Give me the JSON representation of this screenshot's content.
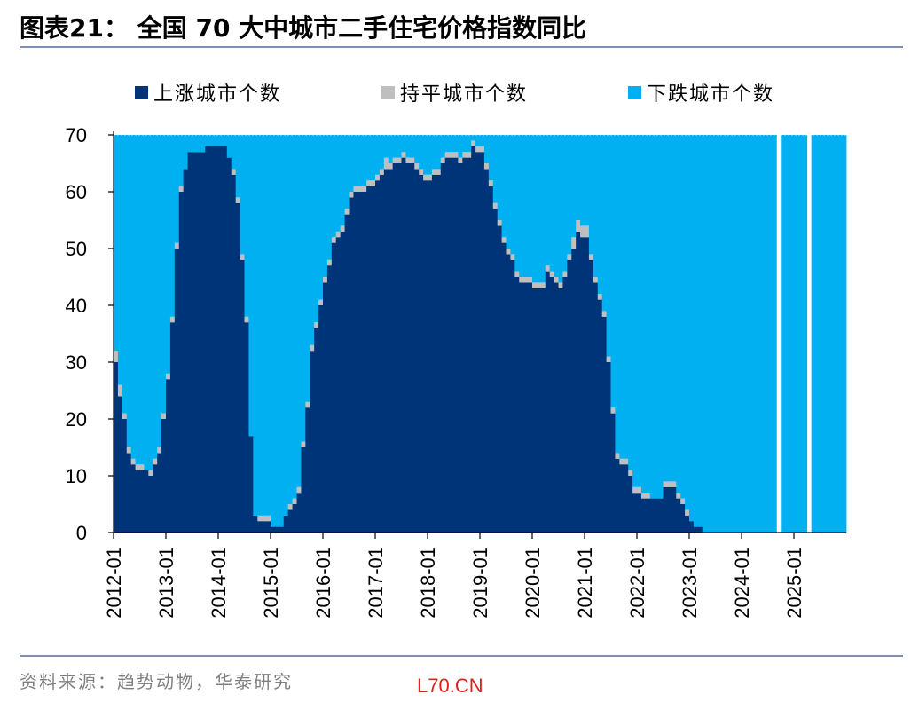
{
  "header": {
    "title": "图表21：  全国 70 大中城市二手住宅价格指数同比"
  },
  "footer": {
    "source": "资料来源：趋势动物，华泰研究",
    "watermark": "L70.CN"
  },
  "colors": {
    "up": "#003478",
    "flat": "#bfbfbf",
    "down": "#00b0f0"
  },
  "chart_data": {
    "type": "area",
    "stacked": true,
    "xlabel": "",
    "ylabel": "",
    "ylim": [
      0,
      70
    ],
    "yticks": [
      0,
      10,
      20,
      30,
      40,
      50,
      60,
      70
    ],
    "xticks": [
      "2012-01",
      "2013-01",
      "2014-01",
      "2015-01",
      "2016-01",
      "2017-01",
      "2018-01",
      "2019-01",
      "2020-01",
      "2021-01",
      "2022-01",
      "2023-01",
      "2024-01",
      "2025-01"
    ],
    "legend": {
      "placement": "top",
      "entries": [
        "上涨城市个数",
        "持平城市个数",
        "下跌城市个数"
      ]
    },
    "x_start": "2012-01",
    "x_end": "2025-12",
    "series": [
      {
        "name": "上涨城市个数",
        "values": [
          30,
          24,
          20,
          14,
          12,
          11,
          11,
          11,
          10,
          12,
          14,
          20,
          27,
          37,
          50,
          60,
          64,
          67,
          67,
          67,
          67,
          68,
          68,
          68,
          68,
          68,
          66,
          63,
          58,
          48,
          37,
          17,
          3,
          2,
          2,
          2,
          1,
          1,
          1,
          3,
          4,
          5,
          7,
          15,
          22,
          32,
          36,
          40,
          44,
          47,
          51,
          52,
          53,
          56,
          59,
          60,
          60,
          60,
          61,
          61,
          62,
          63,
          64,
          64,
          65,
          65,
          66,
          65,
          65,
          64,
          63,
          62,
          62,
          63,
          63,
          65,
          66,
          66,
          66,
          65,
          66,
          66,
          68,
          67,
          67,
          64,
          61,
          57,
          54,
          51,
          49,
          48,
          45,
          44,
          44,
          44,
          43,
          43,
          43,
          46,
          45,
          44,
          43,
          45,
          48,
          50,
          53,
          52,
          52,
          48,
          44,
          41,
          38,
          30,
          21,
          13,
          12,
          12,
          10,
          7,
          7,
          6,
          6,
          6,
          6,
          6,
          8,
          8,
          8,
          6,
          5,
          3,
          2,
          1,
          1,
          0,
          0,
          0,
          0,
          0,
          0,
          0,
          0,
          0,
          0,
          0,
          0,
          0,
          0,
          0,
          0,
          0,
          0,
          0,
          0,
          0,
          0,
          0,
          0,
          0,
          0,
          0,
          0,
          0,
          0,
          0,
          0,
          0
        ]
      },
      {
        "name": "持平城市个数",
        "values": [
          2,
          2,
          1,
          1,
          1,
          1,
          1,
          0,
          1,
          1,
          1,
          1,
          1,
          1,
          1,
          1,
          0,
          0,
          0,
          0,
          0,
          0,
          0,
          0,
          0,
          0,
          0,
          1,
          1,
          1,
          1,
          0,
          0,
          1,
          1,
          1,
          0,
          0,
          0,
          0,
          1,
          1,
          1,
          1,
          1,
          1,
          1,
          1,
          1,
          1,
          1,
          1,
          1,
          1,
          1,
          1,
          1,
          1,
          1,
          1,
          1,
          1,
          2,
          1,
          1,
          1,
          1,
          1,
          1,
          1,
          1,
          1,
          1,
          1,
          1,
          1,
          1,
          1,
          1,
          1,
          1,
          1,
          1,
          1,
          1,
          1,
          1,
          1,
          1,
          1,
          1,
          1,
          1,
          1,
          1,
          1,
          1,
          1,
          1,
          1,
          1,
          1,
          1,
          1,
          1,
          2,
          2,
          2,
          2,
          1,
          1,
          1,
          1,
          1,
          1,
          1,
          1,
          1,
          1,
          1,
          1,
          1,
          1,
          0,
          0,
          0,
          1,
          1,
          1,
          1,
          1,
          1,
          0,
          0,
          0,
          0,
          0,
          0,
          0,
          0,
          0,
          0,
          0,
          0,
          0,
          0,
          0,
          0,
          0,
          0,
          0,
          0,
          0,
          0,
          0,
          0,
          0,
          0,
          0,
          0,
          0,
          0,
          0,
          0,
          0,
          0,
          0,
          0
        ]
      },
      {
        "name": "下跌城市个数",
        "values": [
          38,
          44,
          49,
          55,
          57,
          58,
          58,
          59,
          59,
          57,
          55,
          49,
          42,
          32,
          19,
          9,
          6,
          3,
          3,
          3,
          3,
          2,
          2,
          2,
          2,
          2,
          4,
          6,
          11,
          21,
          32,
          53,
          67,
          67,
          67,
          67,
          69,
          69,
          69,
          67,
          65,
          64,
          62,
          54,
          47,
          37,
          33,
          29,
          25,
          22,
          18,
          17,
          16,
          13,
          10,
          9,
          9,
          9,
          8,
          8,
          7,
          6,
          4,
          5,
          4,
          4,
          3,
          4,
          4,
          5,
          6,
          7,
          7,
          6,
          6,
          4,
          3,
          3,
          3,
          4,
          3,
          3,
          1,
          2,
          2,
          5,
          8,
          12,
          15,
          18,
          20,
          21,
          24,
          25,
          25,
          25,
          26,
          26,
          26,
          23,
          24,
          25,
          26,
          24,
          21,
          18,
          15,
          16,
          16,
          21,
          25,
          28,
          31,
          39,
          48,
          56,
          57,
          57,
          59,
          62,
          62,
          63,
          63,
          64,
          64,
          64,
          61,
          61,
          61,
          63,
          64,
          66,
          68,
          69,
          69,
          70,
          70,
          70,
          70,
          70,
          70,
          70,
          70,
          70,
          70,
          70,
          70,
          70,
          70,
          70,
          70,
          70,
          null,
          70,
          70,
          70,
          70,
          70,
          70,
          null,
          70,
          70,
          70,
          70,
          70,
          70,
          70,
          70
        ]
      }
    ]
  }
}
